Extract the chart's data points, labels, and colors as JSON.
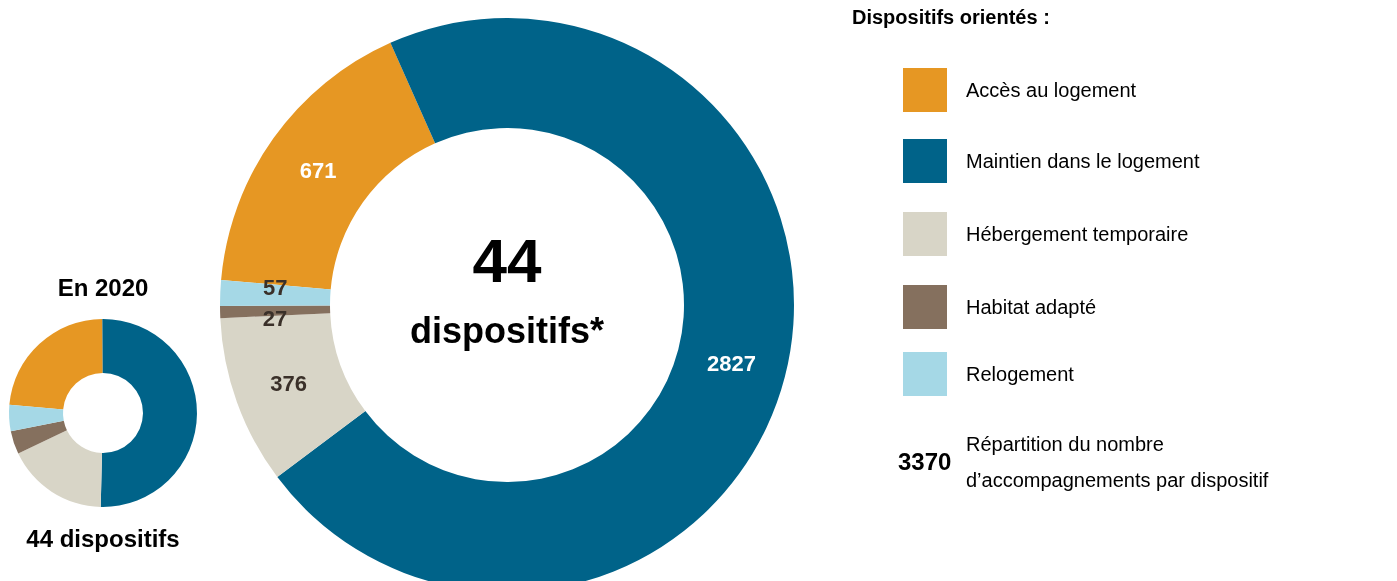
{
  "chart_data": [
    {
      "type": "donut",
      "title": "En 2020",
      "categories": [
        null,
        null,
        null,
        null,
        null
      ],
      "values": [
        23.5,
        50.5,
        17.5,
        4,
        4.5
      ],
      "colors": [
        "#e69723",
        "#006389",
        "#d8d5c7",
        "#85705e",
        "#a5d8e6"
      ],
      "annotations": [
        "44 dispositifs"
      ]
    },
    {
      "type": "donut",
      "title": "44",
      "subtitle": "dispositifs*",
      "categories": [
        "Accès au logement",
        "Maintien dans le logement",
        "Hébergement temporaire",
        "Habitat adapté",
        "Relogement"
      ],
      "values": [
        671,
        2827,
        376,
        27,
        57
      ],
      "colors": [
        "#e69723",
        "#006389",
        "#d8d5c7",
        "#85705e",
        "#a5d8e6"
      ],
      "data_labels": true,
      "legend": "right",
      "legend_title": "Dispositifs orientés :",
      "annotations": [
        "3370",
        "Répartition du nombre\nd’accompagnements par dispositif"
      ]
    }
  ]
}
